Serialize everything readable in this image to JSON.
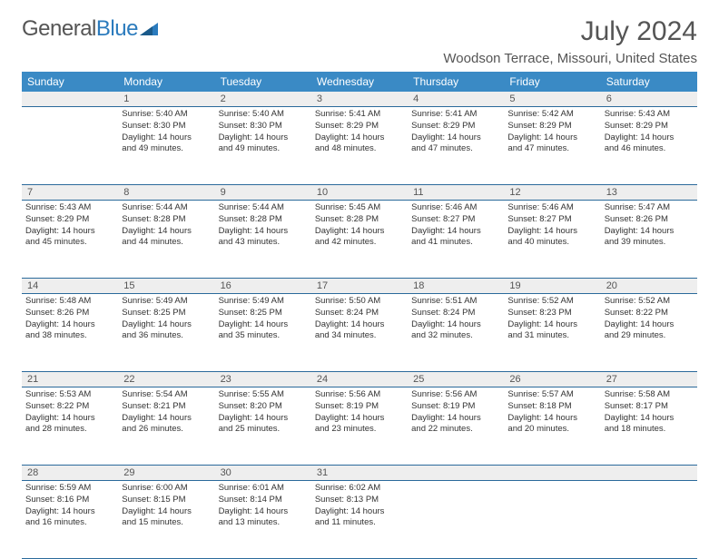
{
  "brand": {
    "part1": "General",
    "part2": "Blue"
  },
  "title": "July 2024",
  "location": "Woodson Terrace, Missouri, United States",
  "dayHeaders": [
    "Sunday",
    "Monday",
    "Tuesday",
    "Wednesday",
    "Thursday",
    "Friday",
    "Saturday"
  ],
  "colors": {
    "headerBg": "#3a8ac5",
    "headerText": "#ffffff",
    "daynumBg": "#eeeeee",
    "rowBorder": "#2b6a9b",
    "bodyText": "#333333",
    "titleText": "#555555"
  },
  "typography": {
    "monthTitleSize": 30,
    "locationSize": 15,
    "headerFontSize": 12,
    "dayNumFontSize": 11,
    "cellFontSize": 9.5
  },
  "weeks": [
    [
      null,
      {
        "n": "1",
        "sr": "Sunrise: 5:40 AM",
        "ss": "Sunset: 8:30 PM",
        "d1": "Daylight: 14 hours",
        "d2": "and 49 minutes."
      },
      {
        "n": "2",
        "sr": "Sunrise: 5:40 AM",
        "ss": "Sunset: 8:30 PM",
        "d1": "Daylight: 14 hours",
        "d2": "and 49 minutes."
      },
      {
        "n": "3",
        "sr": "Sunrise: 5:41 AM",
        "ss": "Sunset: 8:29 PM",
        "d1": "Daylight: 14 hours",
        "d2": "and 48 minutes."
      },
      {
        "n": "4",
        "sr": "Sunrise: 5:41 AM",
        "ss": "Sunset: 8:29 PM",
        "d1": "Daylight: 14 hours",
        "d2": "and 47 minutes."
      },
      {
        "n": "5",
        "sr": "Sunrise: 5:42 AM",
        "ss": "Sunset: 8:29 PM",
        "d1": "Daylight: 14 hours",
        "d2": "and 47 minutes."
      },
      {
        "n": "6",
        "sr": "Sunrise: 5:43 AM",
        "ss": "Sunset: 8:29 PM",
        "d1": "Daylight: 14 hours",
        "d2": "and 46 minutes."
      }
    ],
    [
      {
        "n": "7",
        "sr": "Sunrise: 5:43 AM",
        "ss": "Sunset: 8:29 PM",
        "d1": "Daylight: 14 hours",
        "d2": "and 45 minutes."
      },
      {
        "n": "8",
        "sr": "Sunrise: 5:44 AM",
        "ss": "Sunset: 8:28 PM",
        "d1": "Daylight: 14 hours",
        "d2": "and 44 minutes."
      },
      {
        "n": "9",
        "sr": "Sunrise: 5:44 AM",
        "ss": "Sunset: 8:28 PM",
        "d1": "Daylight: 14 hours",
        "d2": "and 43 minutes."
      },
      {
        "n": "10",
        "sr": "Sunrise: 5:45 AM",
        "ss": "Sunset: 8:28 PM",
        "d1": "Daylight: 14 hours",
        "d2": "and 42 minutes."
      },
      {
        "n": "11",
        "sr": "Sunrise: 5:46 AM",
        "ss": "Sunset: 8:27 PM",
        "d1": "Daylight: 14 hours",
        "d2": "and 41 minutes."
      },
      {
        "n": "12",
        "sr": "Sunrise: 5:46 AM",
        "ss": "Sunset: 8:27 PM",
        "d1": "Daylight: 14 hours",
        "d2": "and 40 minutes."
      },
      {
        "n": "13",
        "sr": "Sunrise: 5:47 AM",
        "ss": "Sunset: 8:26 PM",
        "d1": "Daylight: 14 hours",
        "d2": "and 39 minutes."
      }
    ],
    [
      {
        "n": "14",
        "sr": "Sunrise: 5:48 AM",
        "ss": "Sunset: 8:26 PM",
        "d1": "Daylight: 14 hours",
        "d2": "and 38 minutes."
      },
      {
        "n": "15",
        "sr": "Sunrise: 5:49 AM",
        "ss": "Sunset: 8:25 PM",
        "d1": "Daylight: 14 hours",
        "d2": "and 36 minutes."
      },
      {
        "n": "16",
        "sr": "Sunrise: 5:49 AM",
        "ss": "Sunset: 8:25 PM",
        "d1": "Daylight: 14 hours",
        "d2": "and 35 minutes."
      },
      {
        "n": "17",
        "sr": "Sunrise: 5:50 AM",
        "ss": "Sunset: 8:24 PM",
        "d1": "Daylight: 14 hours",
        "d2": "and 34 minutes."
      },
      {
        "n": "18",
        "sr": "Sunrise: 5:51 AM",
        "ss": "Sunset: 8:24 PM",
        "d1": "Daylight: 14 hours",
        "d2": "and 32 minutes."
      },
      {
        "n": "19",
        "sr": "Sunrise: 5:52 AM",
        "ss": "Sunset: 8:23 PM",
        "d1": "Daylight: 14 hours",
        "d2": "and 31 minutes."
      },
      {
        "n": "20",
        "sr": "Sunrise: 5:52 AM",
        "ss": "Sunset: 8:22 PM",
        "d1": "Daylight: 14 hours",
        "d2": "and 29 minutes."
      }
    ],
    [
      {
        "n": "21",
        "sr": "Sunrise: 5:53 AM",
        "ss": "Sunset: 8:22 PM",
        "d1": "Daylight: 14 hours",
        "d2": "and 28 minutes."
      },
      {
        "n": "22",
        "sr": "Sunrise: 5:54 AM",
        "ss": "Sunset: 8:21 PM",
        "d1": "Daylight: 14 hours",
        "d2": "and 26 minutes."
      },
      {
        "n": "23",
        "sr": "Sunrise: 5:55 AM",
        "ss": "Sunset: 8:20 PM",
        "d1": "Daylight: 14 hours",
        "d2": "and 25 minutes."
      },
      {
        "n": "24",
        "sr": "Sunrise: 5:56 AM",
        "ss": "Sunset: 8:19 PM",
        "d1": "Daylight: 14 hours",
        "d2": "and 23 minutes."
      },
      {
        "n": "25",
        "sr": "Sunrise: 5:56 AM",
        "ss": "Sunset: 8:19 PM",
        "d1": "Daylight: 14 hours",
        "d2": "and 22 minutes."
      },
      {
        "n": "26",
        "sr": "Sunrise: 5:57 AM",
        "ss": "Sunset: 8:18 PM",
        "d1": "Daylight: 14 hours",
        "d2": "and 20 minutes."
      },
      {
        "n": "27",
        "sr": "Sunrise: 5:58 AM",
        "ss": "Sunset: 8:17 PM",
        "d1": "Daylight: 14 hours",
        "d2": "and 18 minutes."
      }
    ],
    [
      {
        "n": "28",
        "sr": "Sunrise: 5:59 AM",
        "ss": "Sunset: 8:16 PM",
        "d1": "Daylight: 14 hours",
        "d2": "and 16 minutes."
      },
      {
        "n": "29",
        "sr": "Sunrise: 6:00 AM",
        "ss": "Sunset: 8:15 PM",
        "d1": "Daylight: 14 hours",
        "d2": "and 15 minutes."
      },
      {
        "n": "30",
        "sr": "Sunrise: 6:01 AM",
        "ss": "Sunset: 8:14 PM",
        "d1": "Daylight: 14 hours",
        "d2": "and 13 minutes."
      },
      {
        "n": "31",
        "sr": "Sunrise: 6:02 AM",
        "ss": "Sunset: 8:13 PM",
        "d1": "Daylight: 14 hours",
        "d2": "and 11 minutes."
      },
      null,
      null,
      null
    ]
  ]
}
